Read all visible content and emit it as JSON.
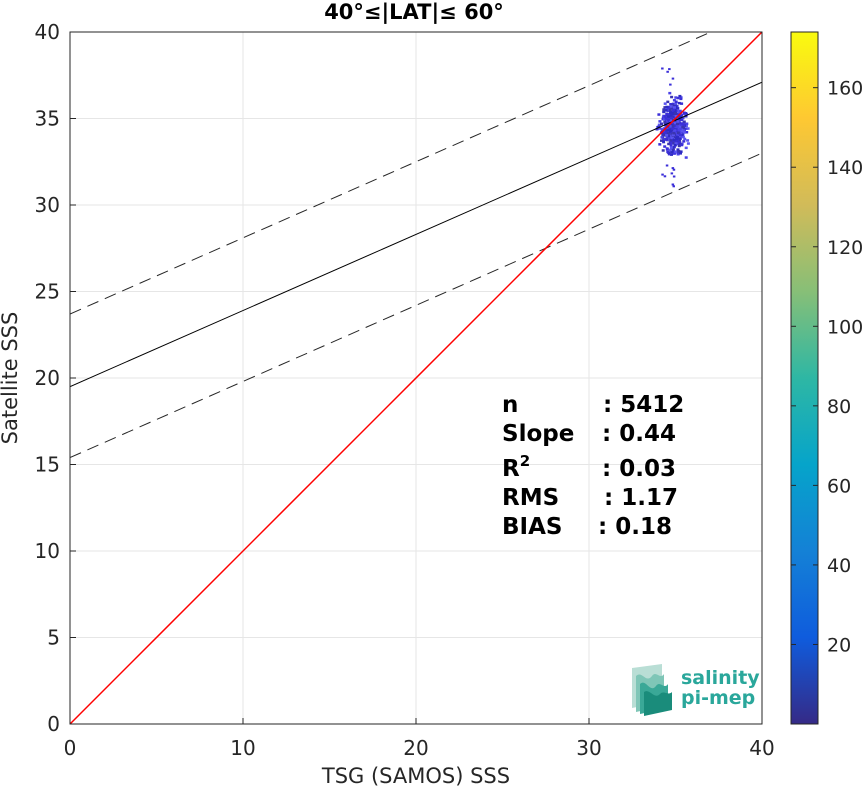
{
  "chart_data": {
    "type": "heatmap",
    "title": "40°≤|LAT|≤ 60°",
    "xlabel": "TSG (SAMOS) SSS",
    "ylabel": "Satellite SSS",
    "xlim": [
      0,
      40
    ],
    "ylim": [
      0,
      40
    ],
    "xticks": [
      0,
      10,
      20,
      30,
      40
    ],
    "yticks": [
      0,
      5,
      10,
      15,
      20,
      25,
      30,
      35,
      40
    ],
    "grid": true,
    "reference_line": {
      "name": "1:1",
      "color": "#ff0000",
      "x": [
        0,
        40
      ],
      "y": [
        0,
        40
      ]
    },
    "fit_line": {
      "slope": 0.44,
      "intercept": 19.5,
      "color": "#000000"
    },
    "fit_bounds": {
      "upper_intercept": 23.7,
      "lower_intercept": 15.4,
      "slope": 0.44,
      "style": "dashed"
    },
    "density": {
      "x_center": 34.8,
      "y_center": 34.6,
      "x_spread": 0.55,
      "y_spread": 1.2,
      "points_estimate": 5412,
      "color": "#3b2fd8"
    },
    "stats": {
      "n_label": "n",
      "n_value": ": 5412",
      "slope_label": "Slope",
      "slope_value": ": 0.44",
      "r2_label": "R",
      "r2_sup": "2",
      "r2_value": ": 0.03",
      "rms_label": "RMS",
      "rms_value": ": 1.17",
      "bias_label": "BIAS",
      "bias_value": ": 0.18"
    },
    "colorbar": {
      "min": 0,
      "max": 174,
      "ticks": [
        20,
        40,
        60,
        80,
        100,
        120,
        140,
        160
      ],
      "colormap": "parula",
      "stops": [
        "#352a87",
        "#0f5cdd",
        "#1481d6",
        "#06a4ca",
        "#2eb7a4",
        "#87bf77",
        "#d1bb59",
        "#fec832",
        "#f9fb0e"
      ]
    }
  },
  "logo": {
    "line1": "salinity",
    "line2": "pi-mep",
    "color": "#2aa79b"
  }
}
